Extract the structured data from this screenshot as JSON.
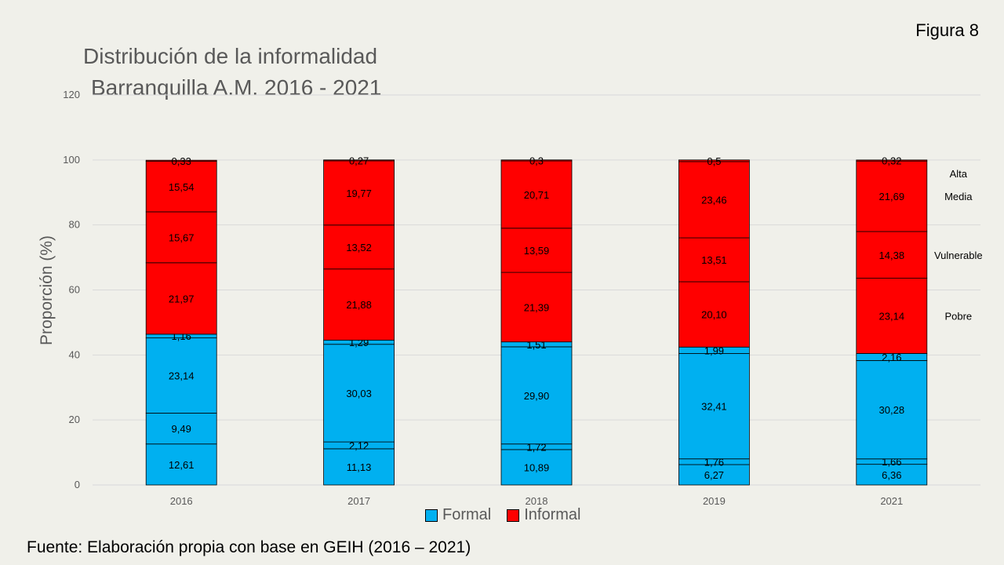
{
  "figure_label": "Figura 8",
  "source_note": "Fuente: Elaboración propia con base en GEIH (2016 – 2021)",
  "chart_data": {
    "type": "bar",
    "stacked": true,
    "title": "Distribución de  la informalidad",
    "subtitle": "Barranquilla A.M. 2016 - 2021",
    "xlabel": "",
    "ylabel": "Proporción (%)",
    "ylim": [
      0,
      120
    ],
    "yticks": [
      0,
      20,
      40,
      60,
      80,
      100,
      120
    ],
    "grid": true,
    "legend_position": "bottom",
    "categories": [
      "2016",
      "2017",
      "2018",
      "2019",
      "2021"
    ],
    "groups": [
      {
        "name": "Formal",
        "color": "#00b0f0"
      },
      {
        "name": "Informal",
        "color": "#ff0000"
      }
    ],
    "segment_labels": [
      "",
      "",
      "",
      "",
      "Pobre",
      "Vulnerable",
      "Media",
      "Alta"
    ],
    "series": [
      {
        "group": "Formal",
        "values": [
          12.61,
          11.13,
          10.89,
          6.27,
          6.36
        ],
        "labels": [
          "12,61",
          "11,13",
          "10,89",
          "6,27",
          "6,36"
        ]
      },
      {
        "group": "Formal",
        "values": [
          9.49,
          2.12,
          1.72,
          1.76,
          1.66
        ],
        "labels": [
          "9,49",
          "2,12",
          "1,72",
          "1,76",
          "1,66"
        ]
      },
      {
        "group": "Formal",
        "values": [
          23.14,
          30.03,
          29.9,
          32.41,
          30.28
        ],
        "labels": [
          "23,14",
          "30,03",
          "29,90",
          "32,41",
          "30,28"
        ]
      },
      {
        "group": "Formal",
        "values": [
          1.16,
          1.29,
          1.51,
          1.99,
          2.16
        ],
        "labels": [
          "1,16",
          "1,29",
          "1,51",
          "1,99",
          "2,16"
        ]
      },
      {
        "group": "Informal",
        "values": [
          21.97,
          21.88,
          21.39,
          20.1,
          23.14
        ],
        "labels": [
          "21,97",
          "21,88",
          "21,39",
          "20,10",
          "23,14"
        ]
      },
      {
        "group": "Informal",
        "values": [
          15.67,
          13.52,
          13.59,
          13.51,
          14.38
        ],
        "labels": [
          "15,67",
          "13,52",
          "13,59",
          "13,51",
          "14,38"
        ]
      },
      {
        "group": "Informal",
        "values": [
          15.54,
          19.77,
          20.71,
          23.46,
          21.69
        ],
        "labels": [
          "15,54",
          "19,77",
          "20,71",
          "23,46",
          "21,69"
        ]
      },
      {
        "group": "Informal",
        "values": [
          0.33,
          0.27,
          0.3,
          0.5,
          0.32
        ],
        "labels": [
          "0,33",
          "0,27",
          "0,3",
          "0,5",
          "0,32"
        ]
      }
    ],
    "colors": {
      "grid": "#d9d9d9",
      "axis_text": "#595959",
      "label_text": "#000000"
    }
  }
}
